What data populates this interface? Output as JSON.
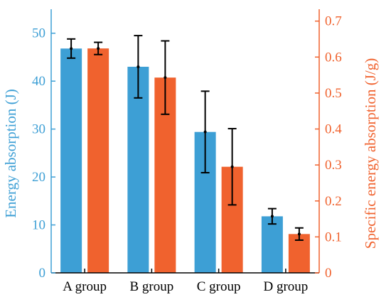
{
  "chart_data": {
    "type": "bar",
    "categories": [
      "A group",
      "B group",
      "C group",
      "D group"
    ],
    "series": [
      {
        "axis": "left",
        "color": "#3d9fd5",
        "values": [
          46.8,
          43.0,
          29.4,
          11.8
        ],
        "error": [
          2.0,
          6.5,
          8.5,
          1.6
        ]
      },
      {
        "axis": "right",
        "color": "#f0622e",
        "values": [
          0.624,
          0.543,
          0.295,
          0.108
        ],
        "error": [
          0.017,
          0.102,
          0.106,
          0.017
        ]
      }
    ],
    "ylabel_left": "Energy absorption (J)",
    "ylabel_right": "Specific energy absorption (J/g)",
    "ylim_left": [
      0,
      55
    ],
    "ylim_right": [
      0,
      0.733
    ],
    "yticks_left": [
      "0",
      "10",
      "20",
      "30",
      "40",
      "50"
    ],
    "yticks_right": [
      "0",
      "0.1",
      "0.2",
      "0.3",
      "0.4",
      "0.5",
      "0.6",
      "0.7"
    ],
    "grid": false,
    "left_axis_color": "#3d9fd5",
    "right_axis_color": "#f0622e"
  }
}
